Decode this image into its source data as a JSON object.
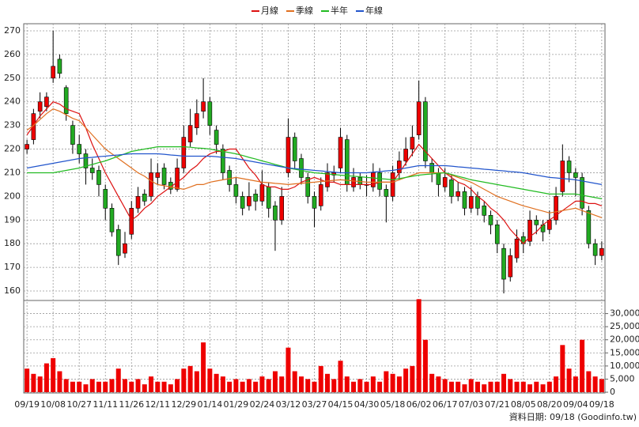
{
  "chart_data": {
    "type": "candlestick",
    "source": "資料日期: 09/18 (Goodinfo.tw)",
    "categories": [
      "09/19",
      null,
      null,
      null,
      "10/08",
      null,
      null,
      null,
      "10/27",
      null,
      null,
      null,
      "11/11",
      null,
      null,
      null,
      "11/26",
      null,
      null,
      null,
      "12/11",
      null,
      null,
      null,
      "12/29",
      null,
      null,
      null,
      "01/14",
      null,
      null,
      null,
      "01/29",
      null,
      null,
      null,
      "02/24",
      null,
      null,
      null,
      "03/12",
      null,
      null,
      null,
      "03/27",
      null,
      null,
      null,
      "04/15",
      null,
      null,
      null,
      "04/30",
      null,
      null,
      null,
      "05/18",
      null,
      null,
      null,
      "06/02",
      null,
      null,
      null,
      "06/17",
      null,
      null,
      null,
      "07/03",
      null,
      null,
      null,
      "07/21",
      null,
      null,
      null,
      "08/05",
      null,
      null,
      null,
      "08/20",
      null,
      null,
      null,
      "09/04",
      null,
      null,
      null,
      "09/18"
    ],
    "ohlc": {
      "open": [
        220,
        224,
        236,
        238,
        250,
        258,
        246,
        230,
        222,
        218,
        212,
        211,
        203,
        195,
        186,
        176,
        184,
        195,
        201,
        200,
        208,
        212,
        206,
        203,
        212,
        223,
        229,
        236,
        240,
        228,
        220,
        211,
        205,
        200,
        196,
        201,
        198,
        204,
        196,
        190,
        210,
        225,
        216,
        208,
        200,
        196,
        204,
        209,
        212,
        224,
        204,
        208,
        205,
        204,
        210,
        203,
        200,
        210,
        215,
        220,
        226,
        240,
        214,
        210,
        204,
        207,
        200,
        202,
        195,
        200,
        196,
        192,
        188,
        178,
        166,
        174,
        183,
        181,
        190,
        188,
        186,
        190,
        202,
        215,
        210,
        208,
        194,
        180,
        175
      ],
      "high": [
        224,
        237,
        244,
        244,
        270,
        260,
        247,
        232,
        226,
        220,
        216,
        213,
        205,
        197,
        188,
        185,
        198,
        204,
        203,
        216,
        214,
        214,
        208,
        216,
        230,
        237,
        241,
        250,
        242,
        230,
        222,
        213,
        208,
        202,
        206,
        203,
        211,
        206,
        198,
        204,
        233,
        227,
        218,
        210,
        202,
        208,
        214,
        213,
        229,
        226,
        212,
        210,
        209,
        214,
        212,
        205,
        213,
        219,
        225,
        230,
        249,
        242,
        216,
        212,
        212,
        209,
        206,
        204,
        204,
        202,
        198,
        194,
        190,
        180,
        178,
        186,
        185,
        194,
        192,
        190,
        194,
        204,
        222,
        217,
        212,
        210,
        196,
        182,
        181
      ],
      "low": [
        218,
        222,
        233,
        236,
        248,
        250,
        232,
        218,
        214,
        205,
        207,
        200,
        190,
        183,
        171,
        174,
        182,
        193,
        196,
        198,
        205,
        203,
        201,
        202,
        210,
        221,
        226,
        233,
        226,
        218,
        207,
        202,
        197,
        192,
        194,
        194,
        196,
        191,
        177,
        188,
        208,
        212,
        205,
        197,
        187,
        194,
        202,
        206,
        210,
        202,
        202,
        203,
        200,
        202,
        200,
        189,
        198,
        207,
        213,
        217,
        224,
        212,
        206,
        200,
        202,
        197,
        198,
        192,
        193,
        192,
        189,
        184,
        176,
        159,
        164,
        172,
        176,
        179,
        184,
        181,
        184,
        188,
        200,
        206,
        200,
        192,
        178,
        171,
        173
      ],
      "close": [
        222,
        235,
        240,
        242,
        255,
        252,
        235,
        222,
        218,
        212,
        210,
        205,
        195,
        185,
        175,
        180,
        195,
        200,
        198,
        210,
        210,
        205,
        203,
        212,
        225,
        230,
        235,
        240,
        230,
        222,
        210,
        205,
        200,
        195,
        200,
        198,
        205,
        195,
        190,
        200,
        225,
        215,
        208,
        200,
        195,
        205,
        210,
        210,
        225,
        205,
        208,
        205,
        205,
        210,
        203,
        200,
        210,
        215,
        220,
        225,
        240,
        215,
        210,
        205,
        208,
        200,
        202,
        195,
        200,
        195,
        192,
        188,
        180,
        165,
        175,
        182,
        180,
        190,
        188,
        185,
        190,
        200,
        215,
        210,
        208,
        195,
        180,
        175,
        178
      ]
    },
    "up_color": "#ee0000",
    "down_color": "#22aa22",
    "volume": [
      9000,
      7000,
      6000,
      11000,
      13000,
      8000,
      5000,
      4000,
      4000,
      3000,
      5000,
      4000,
      4000,
      5000,
      9000,
      5000,
      4000,
      5000,
      3000,
      6000,
      4000,
      4000,
      3000,
      5000,
      9000,
      10000,
      8000,
      19000,
      9000,
      7000,
      6000,
      4000,
      5000,
      4000,
      5000,
      4000,
      6000,
      5000,
      8000,
      6000,
      17000,
      8000,
      6000,
      5000,
      4000,
      10000,
      7000,
      5000,
      12000,
      6000,
      4000,
      5000,
      4000,
      6000,
      4000,
      8000,
      7000,
      6000,
      9000,
      10000,
      35500,
      20000,
      7000,
      6000,
      5000,
      4000,
      4000,
      3000,
      5000,
      4000,
      3000,
      4000,
      4000,
      7000,
      5000,
      4000,
      4000,
      3000,
      4000,
      3000,
      4000,
      6000,
      18000,
      9000,
      6000,
      20000,
      8000,
      6000,
      5000
    ],
    "volume_color": "#ee0000",
    "moving_averages": [
      {
        "name": "月線",
        "color": "#dd1111",
        "values": [
          226,
          230,
          234,
          237,
          240,
          239,
          237,
          236,
          235,
          229,
          222,
          216,
          210,
          205,
          200,
          195,
          190,
          192,
          195,
          197,
          200,
          202,
          204,
          206,
          208,
          211,
          213,
          216,
          218,
          219,
          219,
          220,
          220,
          216,
          212,
          209,
          205,
          204,
          204,
          203,
          203,
          204,
          206,
          207,
          208,
          207,
          206,
          206,
          205,
          205,
          205,
          205,
          205,
          205,
          206,
          206,
          206,
          210,
          214,
          218,
          222,
          219,
          216,
          213,
          210,
          208,
          206,
          205,
          203,
          200,
          198,
          195,
          193,
          190,
          186,
          183,
          180,
          183,
          185,
          188,
          190,
          192,
          194,
          196,
          198,
          198,
          197,
          197,
          196
        ]
      },
      {
        "name": "季線",
        "color": "#e07020",
        "values": [
          228,
          230,
          232.5,
          235,
          237,
          236,
          234.5,
          233,
          232,
          229,
          226,
          223,
          220,
          218,
          216,
          214,
          212,
          210,
          208.5,
          206.5,
          205,
          204.5,
          204,
          203.5,
          203,
          204,
          205,
          205,
          206,
          206.5,
          207,
          207.5,
          208,
          207.5,
          207,
          206.5,
          206,
          205.8,
          205.5,
          205.3,
          205,
          205.3,
          205.5,
          205.8,
          206,
          206.3,
          206.5,
          206.8,
          207,
          206.8,
          206.5,
          206.3,
          206,
          206,
          206,
          206,
          206,
          207,
          208,
          209,
          210,
          210,
          210,
          210,
          210,
          209,
          208,
          207,
          206,
          204.5,
          203,
          201.5,
          200,
          199,
          198,
          197,
          196,
          195.3,
          194.5,
          193.8,
          193,
          193.5,
          194,
          194.5,
          195,
          194,
          193,
          192,
          191
        ]
      },
      {
        "name": "半年",
        "color": "#22bb22",
        "values": [
          210,
          210,
          210,
          210,
          210,
          210.5,
          211,
          211.5,
          212,
          212.8,
          213.5,
          214.3,
          215,
          216,
          217,
          218,
          219,
          219.5,
          220,
          220.5,
          221,
          221,
          221,
          221,
          221,
          220.8,
          220.5,
          220.3,
          220,
          219.5,
          219,
          218.5,
          218,
          217.3,
          216.5,
          215.8,
          215,
          214.3,
          213.5,
          212.8,
          212,
          211.5,
          211,
          210.5,
          210,
          209.8,
          209.5,
          209.3,
          209,
          208.8,
          208.5,
          208.3,
          208,
          207.8,
          207.5,
          207.3,
          207,
          207.5,
          208,
          208.5,
          209,
          209.3,
          209.5,
          209.8,
          210,
          209.3,
          208.5,
          207.8,
          207,
          206.5,
          206,
          205.5,
          205,
          204.5,
          204,
          203.5,
          203,
          202.5,
          202,
          201.5,
          201,
          201,
          201,
          201,
          201,
          200.5,
          200,
          199.5,
          199
        ]
      },
      {
        "name": "年線",
        "color": "#2255cc",
        "values": [
          212,
          212.5,
          213,
          213.5,
          214,
          214.5,
          215,
          215.5,
          216,
          216.3,
          216.5,
          216.8,
          217,
          217.3,
          217.5,
          217.8,
          218,
          218,
          218,
          218,
          218,
          217.8,
          217.5,
          217.3,
          217,
          217,
          217,
          217,
          217,
          216.8,
          216.5,
          216.3,
          216,
          215.5,
          215,
          214.5,
          214,
          213.5,
          213,
          212.5,
          212,
          211.8,
          211.5,
          211.3,
          211,
          210.8,
          210.5,
          210.3,
          210,
          210,
          210,
          210,
          210,
          210.3,
          210.5,
          210.8,
          211,
          211.5,
          212,
          212.5,
          213,
          213,
          213,
          213,
          213,
          212.8,
          212.5,
          212.3,
          212,
          211.8,
          211.5,
          211.3,
          211,
          210.8,
          210.5,
          210.3,
          210,
          209.5,
          209,
          208.5,
          208,
          207.8,
          207.5,
          207.3,
          207,
          206.5,
          206,
          205.5,
          205
        ]
      }
    ],
    "ylim": [
      156,
      273
    ],
    "yticks": [
      160,
      170,
      180,
      190,
      200,
      210,
      220,
      230,
      240,
      250,
      260,
      270
    ],
    "y2lim": [
      0,
      35000
    ],
    "y2ticks": [
      0,
      {
        "value": 5000,
        "label": "5,000"
      },
      {
        "value": 10000,
        "label": "10,000"
      },
      {
        "value": 15000,
        "label": "15,000"
      },
      {
        "value": 20000,
        "label": "20,000"
      },
      {
        "value": 25000,
        "label": "25,000"
      },
      {
        "value": 30000,
        "label": "30,000"
      }
    ],
    "grid": true
  }
}
